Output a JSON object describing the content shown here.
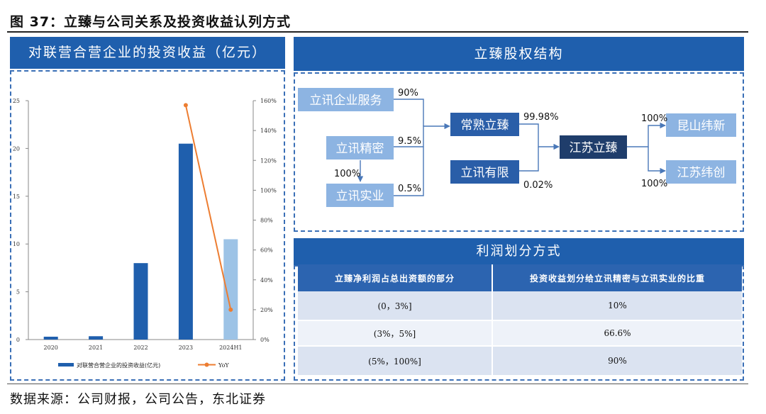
{
  "figure": {
    "title": "图 37：立臻与公司关系及投资收益认列方式",
    "source": "数据来源：公司财报，公司公告，东北证券"
  },
  "left_panel": {
    "title": "对联营合营企业的投资收益（亿元）"
  },
  "chart_data": {
    "type": "bar",
    "categories": [
      "2020",
      "2021",
      "2022",
      "2023",
      "2024H1"
    ],
    "series": [
      {
        "name": "对联营合营企业的投资收益(亿元)",
        "type": "bar",
        "axis": "left",
        "values": [
          0.3,
          0.35,
          8.0,
          20.5,
          10.5
        ],
        "color": "#1f5fad",
        "highlight_last_color": "#9dc3e6"
      },
      {
        "name": "YoY",
        "type": "line",
        "axis": "right",
        "values": [
          null,
          null,
          null,
          157,
          20
        ],
        "color": "#ed7d31"
      }
    ],
    "ylim_left": [
      0,
      25
    ],
    "yticks_left": [
      "0",
      "5",
      "10",
      "15",
      "20",
      "25"
    ],
    "ylim_right": [
      0,
      160
    ],
    "yticks_right": [
      "0%",
      "20%",
      "40%",
      "60%",
      "80%",
      "100%",
      "120%",
      "140%",
      "160%"
    ],
    "legend_position": "bottom"
  },
  "structure": {
    "title": "立臻股权结构",
    "nodes": {
      "lx_service": "立讯企业服务",
      "lx_jingmi": "立讯精密",
      "lx_shiye": "立讯实业",
      "changshu": "常熟立臻",
      "lx_youxian": "立讯有限",
      "jiangsu": "江苏立臻",
      "kunshan": "昆山纬新",
      "jiangsu_wc": "江苏纬创"
    },
    "edges": {
      "service_to_changshu": "90%",
      "jingmi_to_changshu": "9.5%",
      "jingmi_to_shiye": "100%",
      "shiye_to_changshu": "0.5%",
      "changshu_to_jiangsu": "99.98%",
      "youxian_to_jiangsu": "0.02%",
      "jiangsu_to_kunshan": "100%",
      "jiangsu_to_jiangsu_wc": "100%"
    }
  },
  "profit_table": {
    "title": "利润划分方式",
    "headers": [
      "立臻净利润占总出资额的部分",
      "投资收益划分给立讯精密与立讯实业的比重"
    ],
    "rows": [
      [
        "(0，3%]",
        "10%"
      ],
      [
        "(3%，5%]",
        "66.6%"
      ],
      [
        "(5%，100%]",
        "90%"
      ]
    ]
  },
  "colors": {
    "accent_blue": "#1f5fad",
    "light_box": "#8db4e2",
    "dark_box": "#1f3d6b",
    "line_orange": "#ed7d31"
  }
}
